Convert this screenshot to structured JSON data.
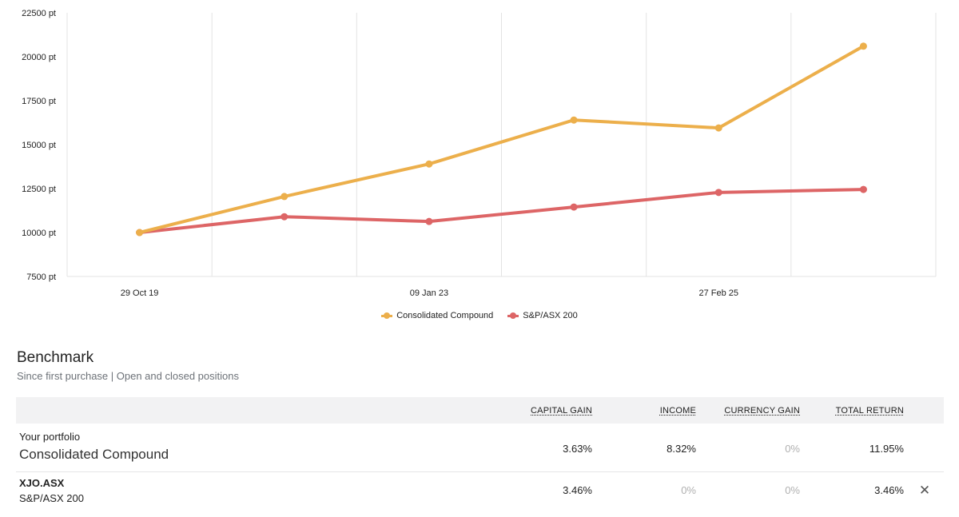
{
  "chart_data": {
    "type": "line",
    "x": [
      "29 Oct 19",
      "",
      "09 Jan 23",
      "",
      "27 Feb 25",
      ""
    ],
    "x_tick_labels": [
      "29 Oct 19",
      "09 Jan 23",
      "27 Feb 25"
    ],
    "ylim": [
      7500,
      22500
    ],
    "y_ticks": [
      7500,
      10000,
      12500,
      15000,
      17500,
      20000,
      22500
    ],
    "y_tick_suffix": " pt",
    "grid": true,
    "legend_position": "bottom",
    "series": [
      {
        "name": "Consolidated Compound",
        "color": "#ecaf4b",
        "values": [
          10000,
          12050,
          13900,
          16400,
          15950,
          20600
        ]
      },
      {
        "name": "S&P/ASX 200",
        "color": "#dd6566",
        "values": [
          10000,
          10900,
          10630,
          11450,
          12280,
          12450
        ]
      }
    ]
  },
  "benchmark": {
    "title": "Benchmark",
    "subtitle": "Since first purchase | Open and closed positions",
    "columns": {
      "capital_gain": "CAPITAL GAIN",
      "income": "INCOME",
      "currency_gain": "CURRENCY GAIN",
      "total_return": "TOTAL RETURN"
    },
    "portfolio": {
      "label": "Your portfolio",
      "name": "Consolidated Compound",
      "capital_gain": "3.63%",
      "income": "8.32%",
      "currency_gain": "0%",
      "total_return": "11.95%"
    },
    "index": {
      "code": "XJO.ASX",
      "name": "S&P/ASX 200",
      "capital_gain": "3.46%",
      "income": "0%",
      "currency_gain": "0%",
      "total_return": "3.46%",
      "remove_icon": "close-icon"
    }
  }
}
